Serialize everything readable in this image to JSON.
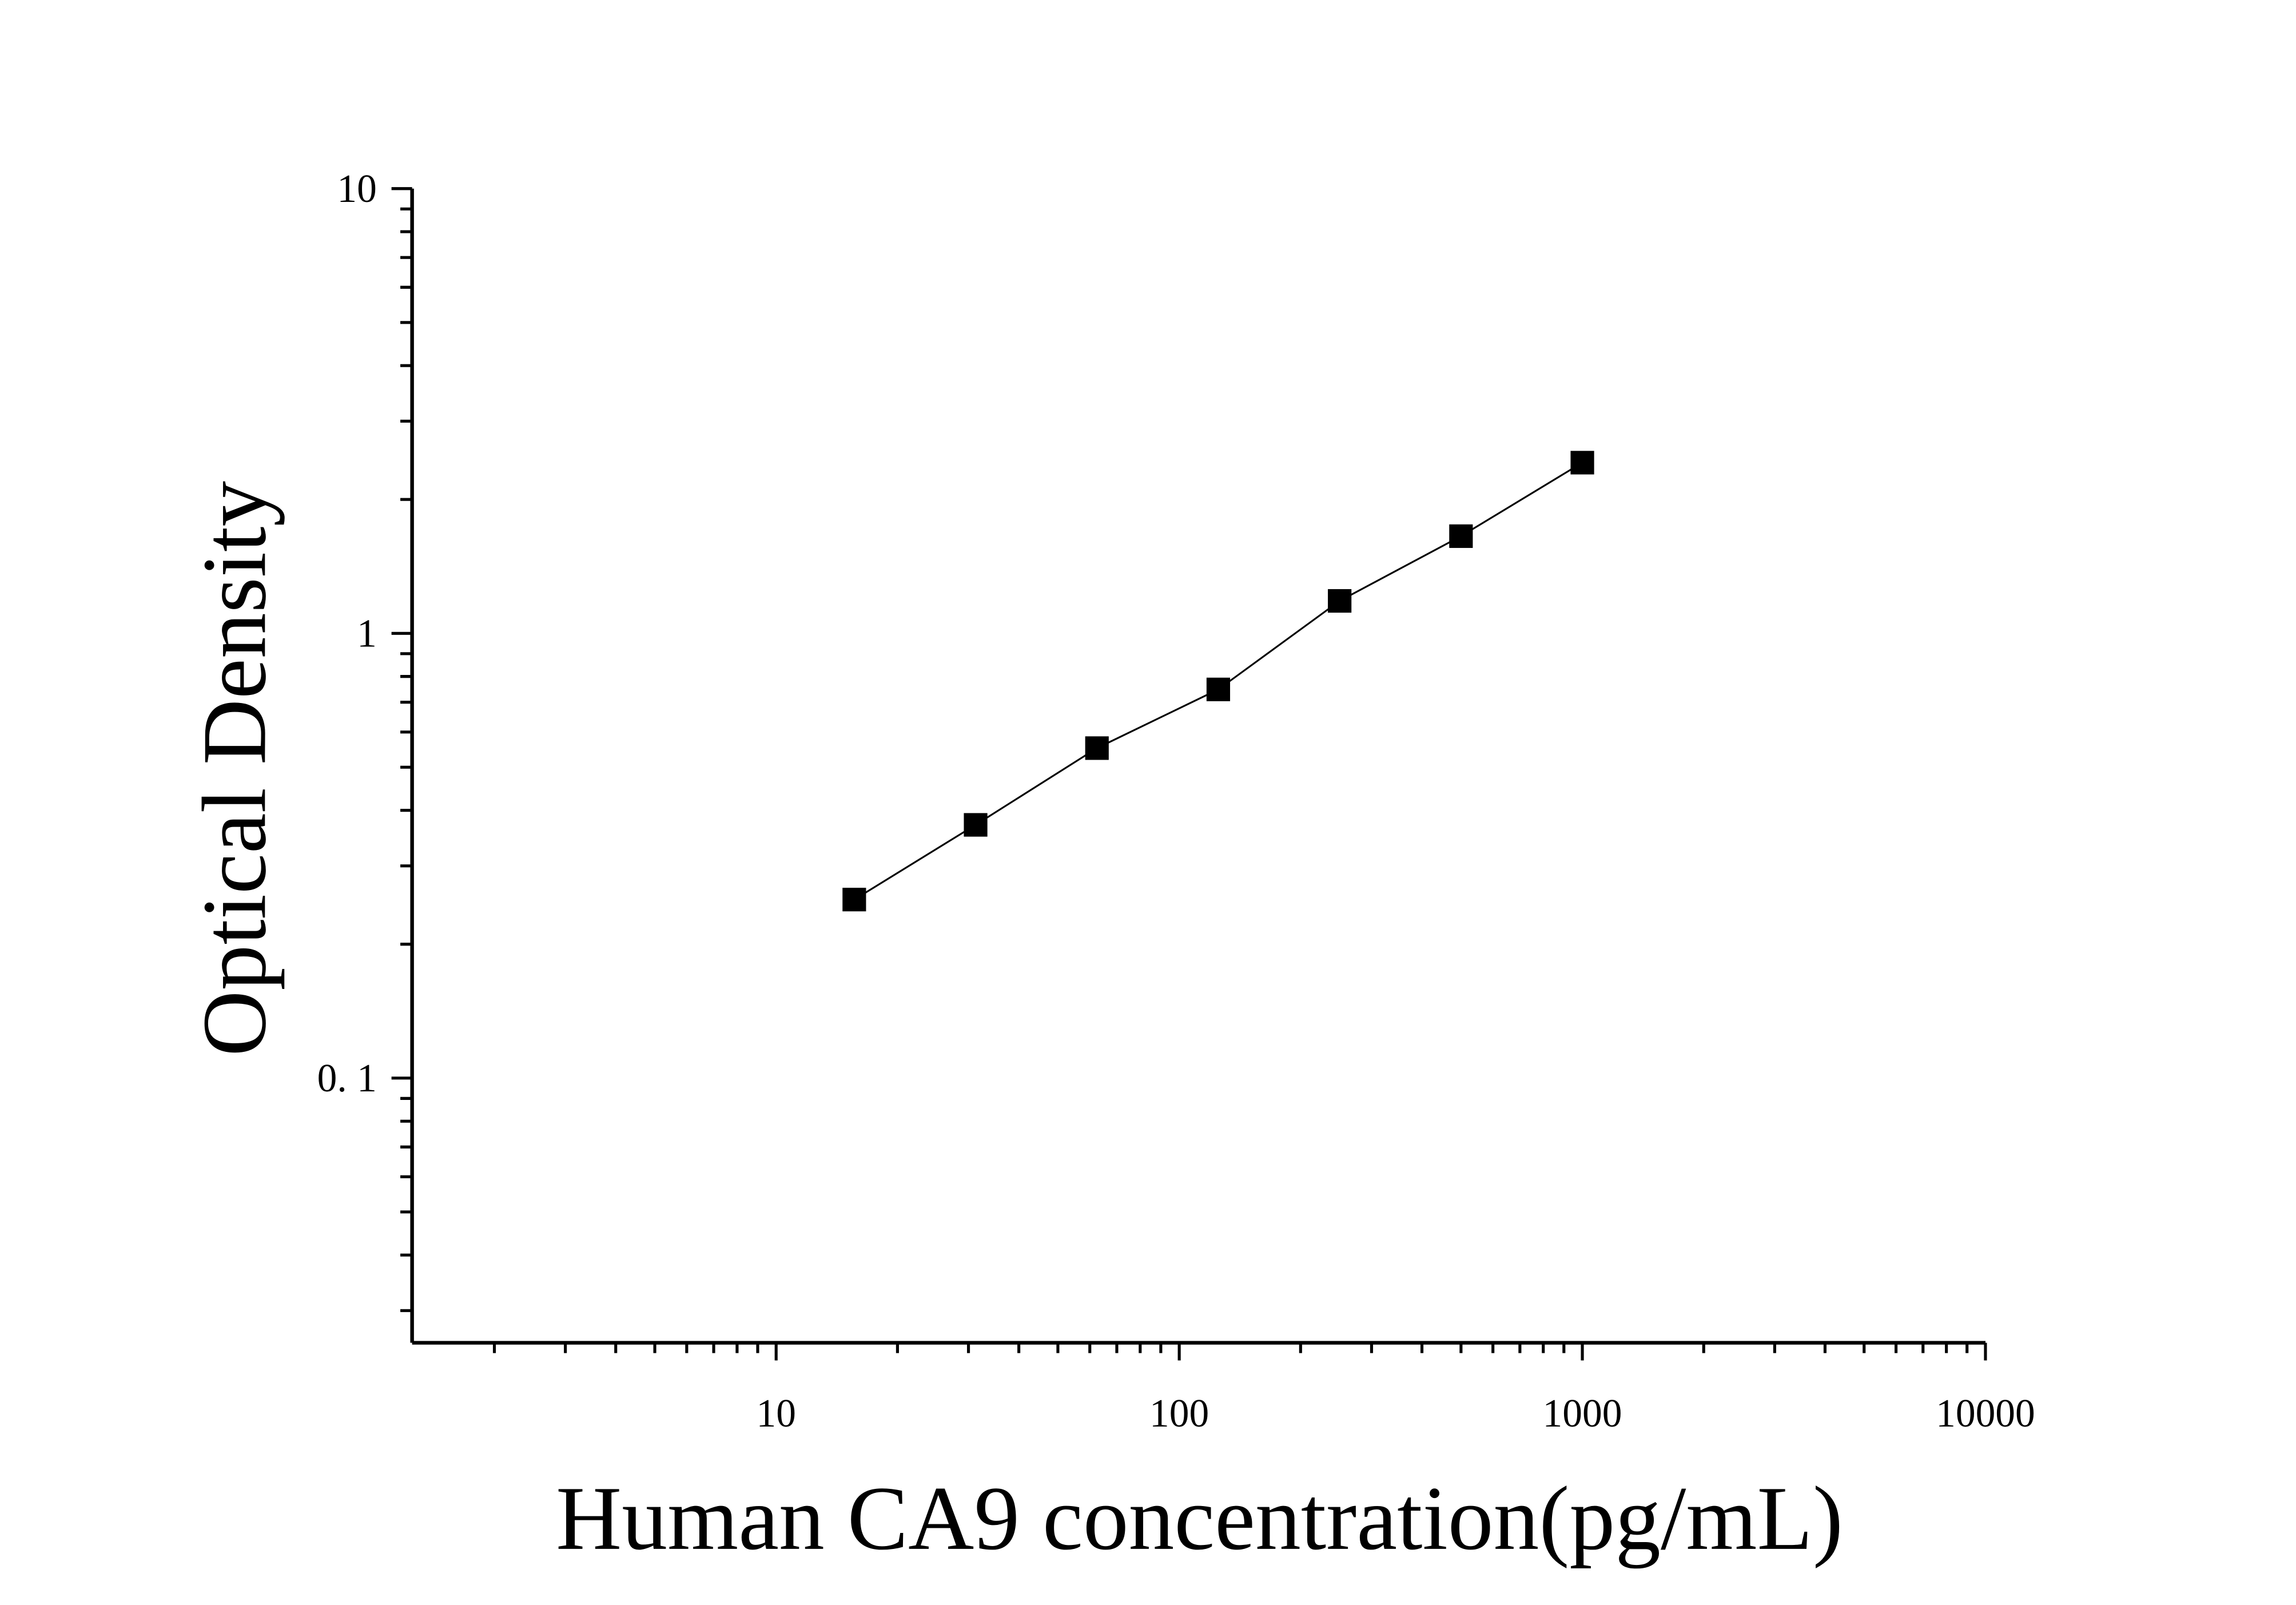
{
  "chart_data": {
    "type": "scatter",
    "xlabel": "Human CA9 concentration(pg/mL)",
    "ylabel": "Optical Density",
    "x_scale": "log",
    "y_scale": "log",
    "xlim": [
      1.25,
      10000
    ],
    "ylim": [
      0.0254,
      10
    ],
    "x_ticks": [
      {
        "value": 10,
        "label": "10"
      },
      {
        "value": 100,
        "label": "100"
      },
      {
        "value": 1000,
        "label": "1000"
      },
      {
        "value": 10000,
        "label": "10000"
      }
    ],
    "y_ticks": [
      {
        "value": 0.1,
        "label": "0. 1"
      },
      {
        "value": 1,
        "label": "1"
      },
      {
        "value": 10,
        "label": "10"
      }
    ],
    "grid": false,
    "marker": "square",
    "color": "#000000",
    "fit_line": true,
    "series": [
      {
        "x": [
          15.625,
          31.25,
          62.5,
          125,
          250,
          500,
          1000
        ],
        "y": [
          0.252,
          0.371,
          0.552,
          0.748,
          1.183,
          1.654,
          2.42
        ]
      }
    ]
  }
}
